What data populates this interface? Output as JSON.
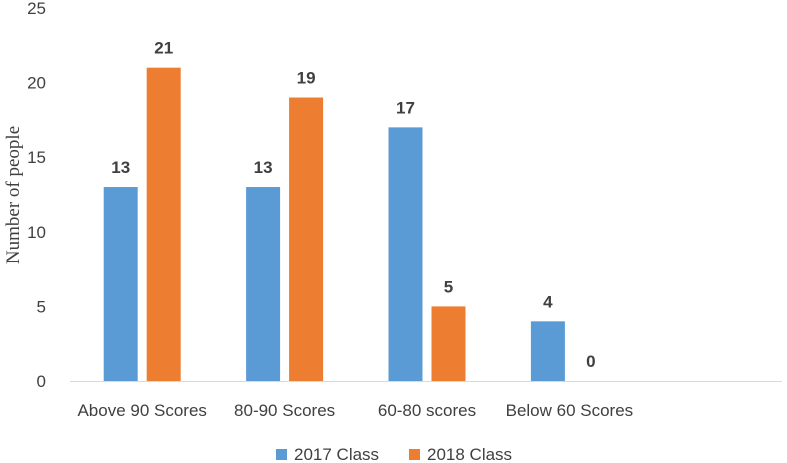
{
  "chart_data": {
    "type": "bar",
    "title": "",
    "xlabel": "",
    "ylabel": "Number of people",
    "ylim": [
      0,
      25
    ],
    "yticks": [
      0,
      5,
      10,
      15,
      20,
      25
    ],
    "categories": [
      "Above 90 Scores",
      "80-90 Scores",
      "60-80 scores",
      "Below 60 Scores"
    ],
    "series": [
      {
        "name": "2017 Class",
        "values": [
          13,
          13,
          17,
          4
        ],
        "color": "#5B9BD5"
      },
      {
        "name": "2018 Class",
        "values": [
          21,
          19,
          5,
          0
        ],
        "color": "#ED7D31"
      }
    ],
    "grid": false,
    "legend_position": "bottom"
  }
}
